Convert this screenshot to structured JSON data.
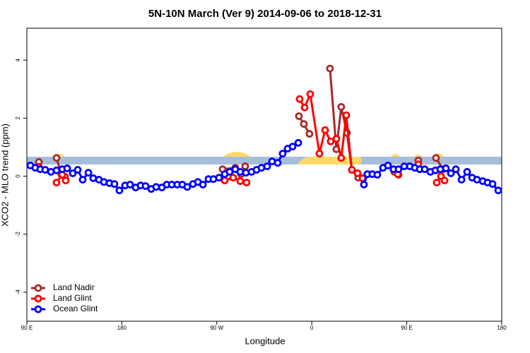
{
  "chart_data": {
    "type": "line",
    "title": "5N-10N March (Ver 9)   2014-09-06 to 2018-12-31",
    "x_label": "Longitude",
    "y_label": "XCO2 - MLO trend (ppm)",
    "xlim": [
      90,
      540
    ],
    "ylim": [
      -5,
      5.1
    ],
    "xticks": [
      {
        "value": 90,
        "label": "90 E"
      },
      180,
      {
        "value": 270,
        "label": "90 W"
      },
      {
        "value": 360,
        "label": "0"
      },
      {
        "value": 450,
        "label": "90 E"
      },
      {
        "value": 540,
        "label": "180"
      }
    ],
    "yticks": [
      -4,
      -2,
      0,
      2,
      4
    ],
    "legend": "bottom-left",
    "series": [
      {
        "name": "Land Nadir",
        "color": "#a52a2a",
        "x": [
          101.4,
          118.1,
          122.8,
          126.2,
          275.5,
          287.5,
          292.9,
          296.9,
          347.8,
          352.5,
          357.8,
          377.2,
          383.3,
          387.9,
          393.3,
          398.0,
          404.0,
          438.2,
          442.2,
          461.0,
          477.7,
          484.4
        ],
        "values": [
          0.49,
          0.63,
          0.05,
          -0.02,
          0.24,
          0.29,
          0.07,
          0.34,
          2.07,
          1.8,
          1.46,
          3.71,
          0.93,
          2.39,
          1.49,
          0.22,
          -0.05,
          0.15,
          0.05,
          0.54,
          0.63,
          0.24
        ]
      },
      {
        "name": "Land Glint",
        "color": "#ff0000",
        "x": [
          101.4,
          118.1,
          123.5,
          126.8,
          277.5,
          285.5,
          292.2,
          298.2,
          348.5,
          353.2,
          358.5,
          367.2,
          372.6,
          377.9,
          383.3,
          387.9,
          392.7,
          398.0,
          403.4,
          408.1,
          441.5,
          461.0,
          478.4,
          482.4,
          485.8
        ],
        "values": [
          0.32,
          -0.22,
          0.05,
          -0.15,
          -0.15,
          -0.05,
          -0.17,
          -0.22,
          2.66,
          2.37,
          2.83,
          0.78,
          1.59,
          1.2,
          1.29,
          0.63,
          2.1,
          0.22,
          0.1,
          -0.07,
          0.07,
          0.41,
          -0.22,
          0.0,
          -0.15
        ]
      },
      {
        "name": "Ocean Glint",
        "color": "#0000ff",
        "x": [
          93.3,
          98.0,
          102.7,
          107.4,
          112.8,
          118.1,
          123.5,
          128.2,
          133.5,
          138.2,
          142.9,
          148.3,
          152.9,
          158.3,
          163.0,
          168.3,
          173.0,
          177.7,
          183.1,
          187.8,
          193.1,
          197.8,
          202.5,
          207.9,
          212.5,
          217.9,
          222.6,
          227.3,
          232.6,
          237.3,
          242.0,
          247.4,
          252.1,
          256.8,
          262.1,
          266.8,
          272.1,
          277.5,
          282.2,
          287.5,
          292.2,
          297.6,
          302.9,
          307.6,
          312.3,
          317.7,
          322.4,
          327.7,
          332.4,
          337.1,
          341.8,
          347.2,
          409.4,
          412.7,
          417.4,
          422.1,
          427.5,
          432.2,
          437.5,
          442.2,
          447.6,
          452.9,
          457.6,
          462.3,
          467.0,
          472.4,
          477.1,
          481.8,
          487.1,
          491.8,
          496.5,
          501.9,
          507.2,
          511.9,
          516.6,
          522.0,
          526.6,
          531.3,
          536.7
        ],
        "values": [
          0.37,
          0.29,
          0.24,
          0.22,
          0.15,
          0.2,
          0.24,
          0.27,
          0.1,
          0.22,
          -0.12,
          0.12,
          -0.07,
          -0.12,
          -0.2,
          -0.24,
          -0.27,
          -0.49,
          -0.32,
          -0.29,
          -0.39,
          -0.32,
          -0.34,
          -0.44,
          -0.37,
          -0.39,
          -0.29,
          -0.29,
          -0.29,
          -0.29,
          -0.37,
          -0.27,
          -0.2,
          -0.29,
          -0.1,
          -0.1,
          -0.05,
          0.07,
          0.15,
          0.24,
          0.15,
          0.12,
          0.15,
          0.22,
          0.29,
          0.34,
          0.51,
          0.46,
          0.78,
          0.95,
          1.02,
          1.15,
          -0.29,
          0.07,
          0.07,
          0.05,
          0.29,
          0.37,
          0.24,
          0.24,
          0.34,
          0.34,
          0.29,
          0.24,
          0.24,
          0.15,
          0.2,
          0.24,
          0.27,
          0.1,
          0.24,
          -0.12,
          0.15,
          -0.05,
          -0.12,
          -0.17,
          -0.22,
          -0.27,
          -0.49
        ]
      }
    ]
  }
}
